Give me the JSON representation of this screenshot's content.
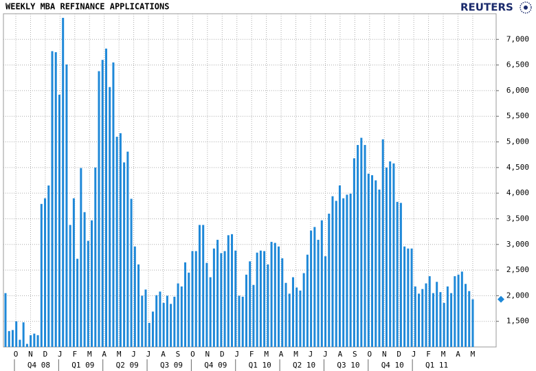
{
  "chart_data": {
    "type": "bar",
    "title": "WEEKLY MBA REFINANCE APPLICATIONS",
    "source": "REUTERS",
    "color": "#1e88d8",
    "grid": true,
    "ylim": [
      1000,
      7500
    ],
    "yticks": [
      {
        "value": 1500,
        "label": "1,500"
      },
      {
        "value": 2000,
        "label": "2,000"
      },
      {
        "value": 2500,
        "label": "2,500"
      },
      {
        "value": 3000,
        "label": "3,000"
      },
      {
        "value": 3500,
        "label": "3,500"
      },
      {
        "value": 4000,
        "label": "4,000"
      },
      {
        "value": 4500,
        "label": "4,500"
      },
      {
        "value": 5000,
        "label": "5,000"
      },
      {
        "value": 5500,
        "label": "5,500"
      },
      {
        "value": 6000,
        "label": "6,000"
      },
      {
        "value": 6500,
        "label": "6,500"
      },
      {
        "value": 7000,
        "label": "7,000"
      }
    ],
    "month_labels": [
      "O",
      "N",
      "D",
      "J",
      "F",
      "M",
      "A",
      "M",
      "J",
      "J",
      "A",
      "S",
      "O",
      "N",
      "D",
      "J",
      "F",
      "M",
      "A",
      "M",
      "J",
      "J",
      "A",
      "S",
      "O",
      "N",
      "D",
      "J",
      "F",
      "M",
      "A",
      "M"
    ],
    "quarter_labels": [
      "Q4 08",
      "Q1 09",
      "Q2 09",
      "Q3 09",
      "Q4 09",
      "Q1 10",
      "Q2 10",
      "Q3 10",
      "Q4 10",
      "Q1 11"
    ],
    "values": [
      2050,
      1310,
      1330,
      1500,
      1140,
      1480,
      1060,
      1230,
      1260,
      1230,
      3790,
      3900,
      4150,
      6770,
      6750,
      5920,
      7420,
      6510,
      3380,
      3900,
      2720,
      4490,
      3630,
      3070,
      3470,
      4500,
      6380,
      6600,
      6820,
      6070,
      6550,
      5100,
      5170,
      4600,
      4810,
      3890,
      2960,
      2610,
      2000,
      2120,
      1470,
      1690,
      2010,
      2080,
      1860,
      2000,
      1840,
      1980,
      2240,
      2180,
      2650,
      2450,
      2870,
      2870,
      3380,
      3380,
      2640,
      2360,
      2920,
      3090,
      2830,
      2870,
      3180,
      3200,
      2880,
      2000,
      1980,
      2410,
      2670,
      2210,
      2840,
      2880,
      2870,
      2610,
      3050,
      3030,
      2960,
      2730,
      2250,
      2040,
      2360,
      2160,
      2100,
      2440,
      2800,
      3270,
      3340,
      3090,
      3470,
      2770,
      3600,
      3940,
      3850,
      4150,
      3900,
      3970,
      3990,
      4680,
      4940,
      5080,
      4940,
      4380,
      4350,
      4250,
      4070,
      5050,
      4500,
      4620,
      4580,
      3830,
      3810,
      2960,
      2920,
      2920,
      2180,
      2040,
      2130,
      2240,
      2380,
      2050,
      2270,
      2070,
      1860,
      2180,
      2050,
      2380,
      2410,
      2470,
      2230,
      2090,
      1930
    ]
  }
}
